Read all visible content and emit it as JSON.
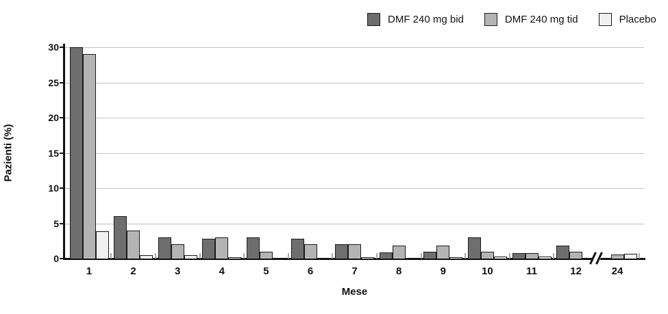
{
  "legend": [
    {
      "label": "DMF 240 mg bid",
      "color": "#6e6e6e"
    },
    {
      "label": "DMF 240 mg tid",
      "color": "#b4b4b4"
    },
    {
      "label": "Placebo",
      "color": "#f0f0f0"
    }
  ],
  "chart_data": {
    "type": "bar",
    "title": "",
    "xlabel": "Mese",
    "ylabel": "Pazienti (%)",
    "ylim": [
      0,
      30
    ],
    "yticks": [
      0,
      5,
      10,
      15,
      20,
      25,
      30
    ],
    "grid": "horizontal",
    "legend_position": "top-right",
    "axis_break_between": [
      "12",
      "24"
    ],
    "categories": [
      "1",
      "2",
      "3",
      "4",
      "5",
      "6",
      "7",
      "8",
      "9",
      "10",
      "11",
      "12",
      "24"
    ],
    "series": [
      {
        "name": "DMF 240 mg bid",
        "color": "#6e6e6e",
        "values": [
          30,
          6,
          3,
          2.8,
          3,
          2.8,
          2,
          0.9,
          1,
          3,
          0.8,
          1.8,
          0
        ]
      },
      {
        "name": "DMF 240 mg tid",
        "color": "#b4b4b4",
        "values": [
          29,
          4,
          2,
          3,
          1,
          2,
          2,
          1.8,
          1.8,
          1,
          0.8,
          1,
          0.6
        ]
      },
      {
        "name": "Placebo",
        "color": "#f0f0f0",
        "values": [
          3.9,
          0.5,
          0.5,
          0.2,
          0,
          0,
          0.2,
          0,
          0.2,
          0.3,
          0.3,
          0,
          0.7
        ]
      }
    ],
    "colors": {
      "bar_border": "#1a1a1a",
      "gridline": "#c3c3c3",
      "axis": "#111111",
      "boundary_tick": "#a9a9a9",
      "background": "#ffffff"
    }
  }
}
